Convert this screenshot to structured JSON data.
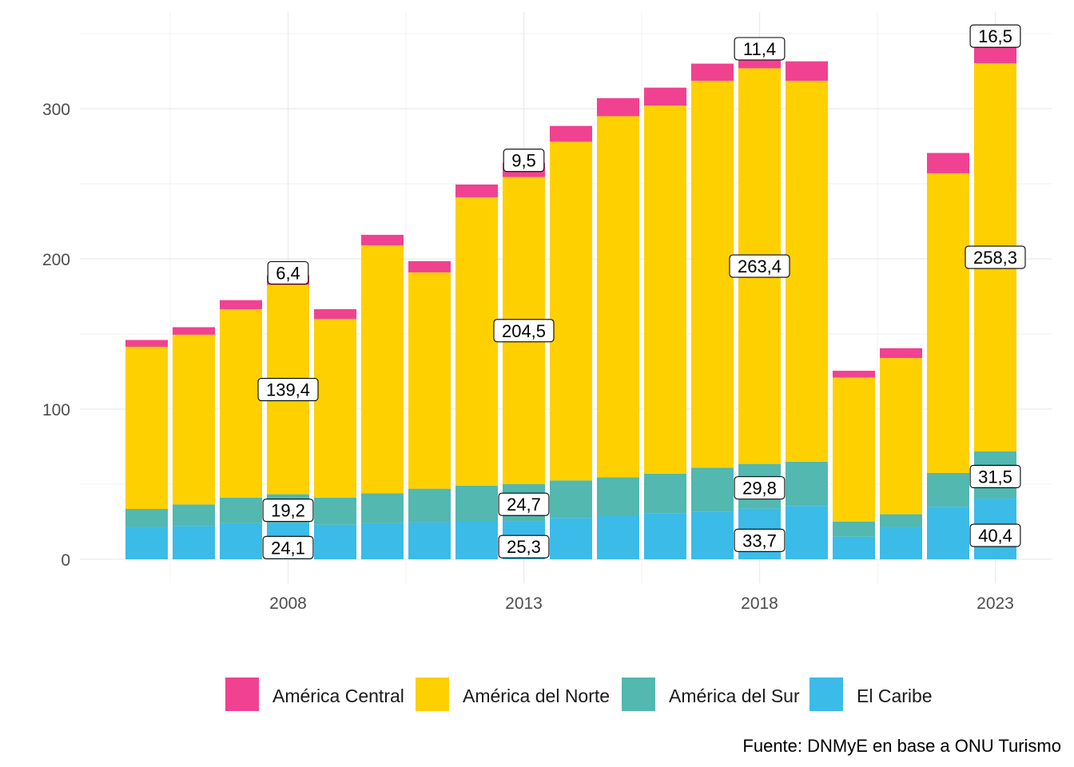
{
  "chart_data": {
    "type": "bar",
    "stacked": true,
    "x": [
      2005,
      2006,
      2007,
      2008,
      2009,
      2010,
      2011,
      2012,
      2013,
      2014,
      2015,
      2016,
      2017,
      2018,
      2019,
      2020,
      2021,
      2022,
      2023
    ],
    "x_ticks": [
      2008,
      2013,
      2018,
      2023
    ],
    "x_tick_labels": [
      "2008",
      "2013",
      "2018",
      "2023"
    ],
    "y_ticks": [
      0,
      100,
      200,
      300
    ],
    "y_tick_labels": [
      "0",
      "100",
      "200",
      "300"
    ],
    "ylim": [
      -15,
      350
    ],
    "grid": true,
    "series": [
      {
        "name": "El Caribe",
        "color": "#3bbbe8",
        "values": [
          21.5,
          22.0,
          24.0,
          24.1,
          23.0,
          24.0,
          24.5,
          25.0,
          25.3,
          27.5,
          29.0,
          30.5,
          31.5,
          33.7,
          35.5,
          15.0,
          21.5,
          35.0,
          40.4
        ]
      },
      {
        "name": "América del Sur",
        "color": "#52b8b0",
        "values": [
          12.0,
          14.5,
          17.0,
          19.2,
          18.0,
          20.0,
          22.5,
          24.0,
          24.7,
          25.0,
          25.5,
          26.5,
          29.5,
          29.8,
          29.5,
          10.0,
          8.5,
          22.5,
          31.5
        ]
      },
      {
        "name": "América del Norte",
        "color": "#ffd000",
        "values": [
          108.0,
          113.0,
          125.5,
          139.4,
          119.0,
          165.0,
          144.0,
          192.0,
          204.5,
          225.5,
          240.5,
          245.0,
          257.5,
          263.4,
          253.5,
          96.0,
          104.0,
          199.5,
          258.3
        ]
      },
      {
        "name": "América Central",
        "color": "#f04290",
        "values": [
          4.5,
          5.0,
          6.0,
          6.4,
          6.5,
          7.0,
          7.5,
          8.5,
          9.5,
          10.5,
          12.0,
          12.0,
          11.5,
          11.4,
          13.0,
          4.5,
          6.5,
          13.5,
          16.5
        ]
      }
    ],
    "data_labels": [
      {
        "year": 2008,
        "series": "El Caribe",
        "text": "24,1"
      },
      {
        "year": 2008,
        "series": "América del Sur",
        "text": "19,2"
      },
      {
        "year": 2008,
        "series": "América del Norte",
        "text": "139,4"
      },
      {
        "year": 2008,
        "series": "América Central",
        "text": "6,4"
      },
      {
        "year": 2013,
        "series": "El Caribe",
        "text": "25,3"
      },
      {
        "year": 2013,
        "series": "América del Sur",
        "text": "24,7"
      },
      {
        "year": 2013,
        "series": "América del Norte",
        "text": "204,5"
      },
      {
        "year": 2013,
        "series": "América Central",
        "text": "9,5"
      },
      {
        "year": 2018,
        "series": "El Caribe",
        "text": "33,7"
      },
      {
        "year": 2018,
        "series": "América del Sur",
        "text": "29,8"
      },
      {
        "year": 2018,
        "series": "América del Norte",
        "text": "263,4"
      },
      {
        "year": 2018,
        "series": "América Central",
        "text": "11,4"
      },
      {
        "year": 2023,
        "series": "El Caribe",
        "text": "40,4"
      },
      {
        "year": 2023,
        "series": "América del Sur",
        "text": "31,5"
      },
      {
        "year": 2023,
        "series": "América del Norte",
        "text": "258,3"
      },
      {
        "year": 2023,
        "series": "América Central",
        "text": "16,5"
      }
    ],
    "legend": {
      "position": "bottom",
      "order": [
        "América Central",
        "América del Norte",
        "América del Sur",
        "El Caribe"
      ]
    },
    "caption": "Fuente: DNMyE en base a ONU Turismo",
    "title": "",
    "xlabel": "",
    "ylabel": ""
  }
}
